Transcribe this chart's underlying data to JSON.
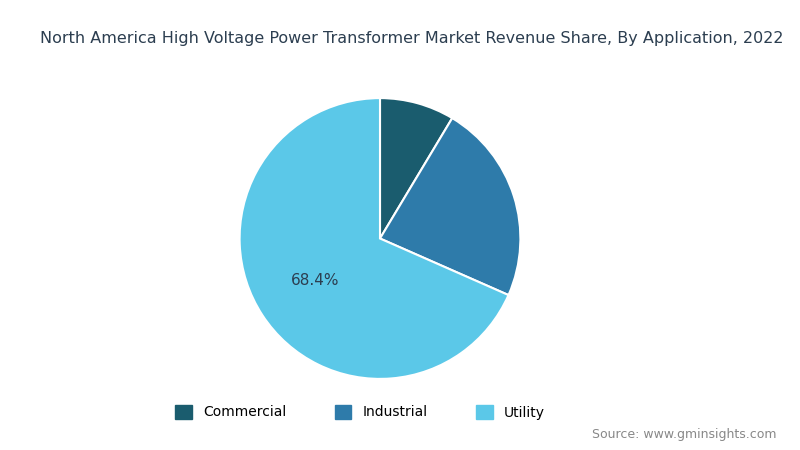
{
  "title": "North America High Voltage Power Transformer Market Revenue Share, By Application, 2022",
  "labels": [
    "Commercial",
    "Industrial",
    "Utility"
  ],
  "values": [
    8.6,
    23.0,
    68.4
  ],
  "colors": [
    "#1a5c6e",
    "#2e7baa",
    "#5bc8e8"
  ],
  "wedge_edge_color": "white",
  "label_68": "68.4%",
  "source_text": "Source: www.gminsights.com",
  "legend_labels": [
    "Commercial",
    "Industrial",
    "Utility"
  ],
  "background_color": "#ffffff",
  "title_color": "#2c3e50",
  "title_fontsize": 11.5,
  "source_fontsize": 9,
  "legend_fontsize": 10,
  "startangle": 90
}
